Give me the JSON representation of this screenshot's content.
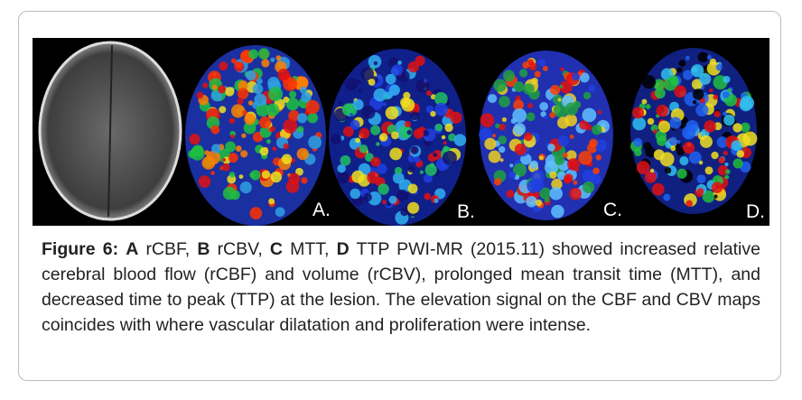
{
  "figure": {
    "panels": [
      {
        "label": "A."
      },
      {
        "label": "B."
      },
      {
        "label": "C."
      },
      {
        "label": "D."
      }
    ]
  },
  "caption": {
    "label": "Figure 6:",
    "items": [
      {
        "key": "A",
        "text": "rCBF,"
      },
      {
        "key": "B",
        "text": "rCBV,"
      },
      {
        "key": "C",
        "text": "MTT,"
      },
      {
        "key": "D",
        "text": "TTP PWI-MR (2015.11) showed increased relative cerebral blood flow (rCBF) and volume (rCBV), prolonged mean transit time (MTT), and decreased time to peak (TTP) at the lesion. The elevation signal on the CBF and CBV maps coincides with where vascular dilatation and proliferation were intense."
      }
    ]
  }
}
